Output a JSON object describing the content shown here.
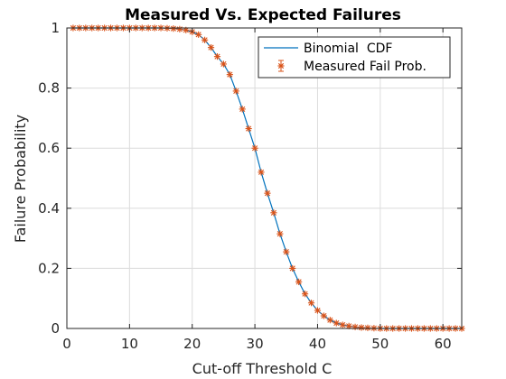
{
  "chart_data": {
    "type": "line",
    "title": "Measured Vs. Expected Failures",
    "xlabel": "Cut-off Threshold C",
    "ylabel": "Failure Probability",
    "xlim": [
      0,
      63
    ],
    "ylim": [
      0,
      1
    ],
    "xticks": [
      0,
      10,
      20,
      30,
      40,
      50,
      60
    ],
    "yticks": [
      0,
      0.2,
      0.4,
      0.6,
      0.8,
      1
    ],
    "xtick_labels": [
      "0",
      "10",
      "20",
      "30",
      "40",
      "50",
      "60"
    ],
    "ytick_labels": [
      "0",
      "0.2",
      "0.4",
      "0.6",
      "0.8",
      "1"
    ],
    "grid": true,
    "legend_position": "top-right",
    "series": [
      {
        "name": "Binomial  CDF",
        "style": "line",
        "color": "#0072BD",
        "x": [
          1,
          2,
          3,
          4,
          5,
          6,
          7,
          8,
          9,
          10,
          11,
          12,
          13,
          14,
          15,
          16,
          17,
          18,
          19,
          20,
          21,
          22,
          23,
          24,
          25,
          26,
          27,
          28,
          29,
          30,
          31,
          32,
          33,
          34,
          35,
          36,
          37,
          38,
          39,
          40,
          41,
          42,
          43,
          44,
          45,
          46,
          47,
          48,
          49,
          50,
          51,
          52,
          53,
          54,
          55,
          56,
          57,
          58,
          59,
          60,
          61,
          62,
          63
        ],
        "y": [
          1,
          1,
          1,
          1,
          1,
          1,
          1,
          1,
          1,
          1,
          1,
          1,
          1,
          1,
          1,
          0.999,
          0.998,
          0.996,
          0.993,
          0.987,
          0.978,
          0.96,
          0.935,
          0.905,
          0.88,
          0.845,
          0.79,
          0.73,
          0.665,
          0.6,
          0.52,
          0.45,
          0.385,
          0.315,
          0.255,
          0.2,
          0.155,
          0.115,
          0.085,
          0.06,
          0.042,
          0.028,
          0.018,
          0.012,
          0.008,
          0.005,
          0.003,
          0.002,
          0.001,
          0,
          0,
          0,
          0,
          0,
          0,
          0,
          0,
          0,
          0,
          0,
          0,
          0,
          0
        ]
      },
      {
        "name": "Measured Fail Prob.",
        "style": "marker-errorbar",
        "marker": "asterisk",
        "color": "#D95319",
        "x": [
          1,
          2,
          3,
          4,
          5,
          6,
          7,
          8,
          9,
          10,
          11,
          12,
          13,
          14,
          15,
          16,
          17,
          18,
          19,
          20,
          21,
          22,
          23,
          24,
          25,
          26,
          27,
          28,
          29,
          30,
          31,
          32,
          33,
          34,
          35,
          36,
          37,
          38,
          39,
          40,
          41,
          42,
          43,
          44,
          45,
          46,
          47,
          48,
          49,
          50,
          51,
          52,
          53,
          54,
          55,
          56,
          57,
          58,
          59,
          60,
          61,
          62,
          63
        ],
        "y": [
          1,
          1,
          1,
          1,
          1,
          1,
          1,
          1,
          1,
          1,
          1,
          1,
          1,
          1,
          1,
          0.999,
          0.998,
          0.996,
          0.993,
          0.987,
          0.978,
          0.96,
          0.935,
          0.905,
          0.88,
          0.845,
          0.79,
          0.73,
          0.665,
          0.6,
          0.52,
          0.45,
          0.385,
          0.315,
          0.255,
          0.2,
          0.155,
          0.115,
          0.085,
          0.06,
          0.042,
          0.028,
          0.018,
          0.012,
          0.008,
          0.005,
          0.003,
          0.002,
          0.001,
          0,
          0,
          0,
          0,
          0,
          0,
          0,
          0,
          0,
          0,
          0,
          0,
          0,
          0
        ]
      }
    ]
  }
}
